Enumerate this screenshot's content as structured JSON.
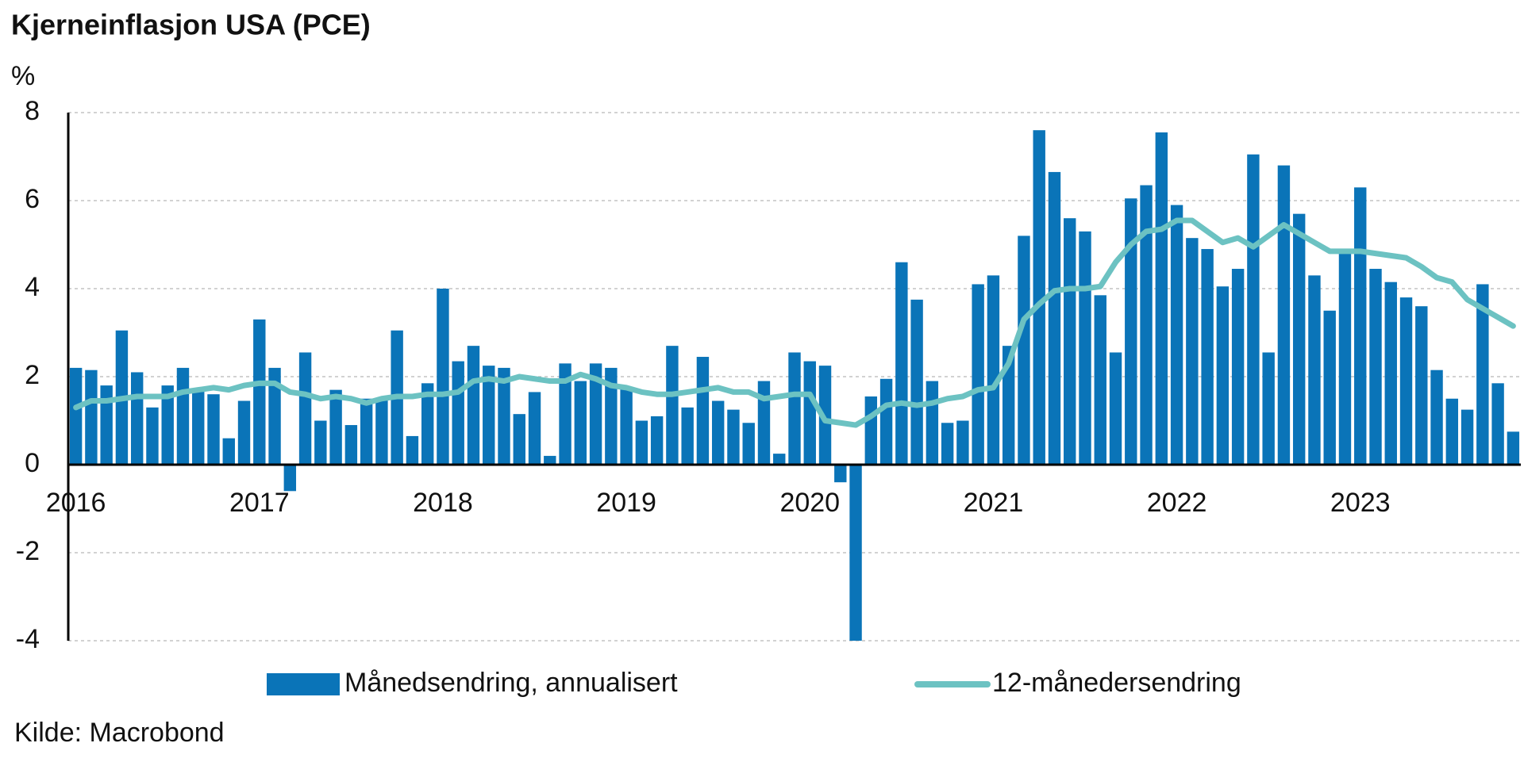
{
  "chart_data": {
    "type": "bar",
    "title": "Kjerneinflasjon USA (PCE)",
    "y_label": "%",
    "source": "Kilde: Macrobond",
    "categories": [
      "2016",
      null,
      null,
      null,
      null,
      null,
      null,
      null,
      null,
      null,
      null,
      null,
      "2017",
      null,
      null,
      null,
      null,
      null,
      null,
      null,
      null,
      null,
      null,
      null,
      "2018",
      null,
      null,
      null,
      null,
      null,
      null,
      null,
      null,
      null,
      null,
      null,
      "2019",
      null,
      null,
      null,
      null,
      null,
      null,
      null,
      null,
      null,
      null,
      null,
      "2020",
      null,
      null,
      null,
      null,
      null,
      null,
      null,
      null,
      null,
      null,
      null,
      "2021",
      null,
      null,
      null,
      null,
      null,
      null,
      null,
      null,
      null,
      null,
      null,
      "2022",
      null,
      null,
      null,
      null,
      null,
      null,
      null,
      null,
      null,
      null,
      null,
      "2023",
      null,
      null,
      null,
      null,
      null,
      null,
      null,
      null,
      null,
      null
    ],
    "series": [
      {
        "name": "Månedsendring, annualisert",
        "type": "bar",
        "color": "#0a74b8",
        "values": [
          2.2,
          2.15,
          1.8,
          3.05,
          2.1,
          1.3,
          1.8,
          2.2,
          1.7,
          1.6,
          0.6,
          1.45,
          3.3,
          2.2,
          -0.6,
          2.55,
          1.0,
          1.7,
          0.9,
          1.5,
          1.5,
          3.05,
          0.65,
          1.85,
          4.0,
          2.35,
          2.7,
          2.25,
          2.2,
          1.15,
          1.65,
          0.2,
          2.3,
          1.9,
          2.3,
          2.2,
          1.75,
          1.0,
          1.1,
          2.7,
          1.3,
          2.45,
          1.45,
          1.25,
          0.95,
          1.9,
          0.25,
          2.55,
          2.35,
          2.25,
          -0.4,
          -4.0,
          1.55,
          1.95,
          4.6,
          3.75,
          1.9,
          0.95,
          1.0,
          4.1,
          4.3,
          2.7,
          5.2,
          7.6,
          6.65,
          5.6,
          5.3,
          3.85,
          2.55,
          6.05,
          6.35,
          7.55,
          5.9,
          5.15,
          4.9,
          4.05,
          4.45,
          7.05,
          2.55,
          6.8,
          5.7,
          4.3,
          3.5,
          4.8,
          6.3,
          4.45,
          4.15,
          3.8,
          3.6,
          2.15,
          1.5,
          1.25,
          4.1,
          1.85,
          0.75
        ]
      },
      {
        "name": "12-månedersendring",
        "type": "line",
        "color": "#6cc2c2",
        "values": [
          1.3,
          1.45,
          1.45,
          1.5,
          1.55,
          1.55,
          1.55,
          1.65,
          1.7,
          1.75,
          1.7,
          1.8,
          1.85,
          1.85,
          1.65,
          1.6,
          1.5,
          1.55,
          1.5,
          1.4,
          1.5,
          1.55,
          1.55,
          1.6,
          1.6,
          1.65,
          1.9,
          1.95,
          1.9,
          2.0,
          1.95,
          1.9,
          1.9,
          2.05,
          1.95,
          1.8,
          1.75,
          1.65,
          1.6,
          1.6,
          1.65,
          1.7,
          1.75,
          1.65,
          1.65,
          1.5,
          1.55,
          1.6,
          1.6,
          1.0,
          0.95,
          0.9,
          1.1,
          1.35,
          1.4,
          1.35,
          1.4,
          1.5,
          1.55,
          1.7,
          1.75,
          2.3,
          3.3,
          3.65,
          3.95,
          4.0,
          4.0,
          4.05,
          4.6,
          5.0,
          5.3,
          5.35,
          5.55,
          5.55,
          5.3,
          5.05,
          5.15,
          4.95,
          5.2,
          5.45,
          5.25,
          5.05,
          4.85,
          4.85,
          4.85,
          4.8,
          4.75,
          4.7,
          4.5,
          4.25,
          4.15,
          3.75,
          3.55,
          3.35,
          3.15
        ]
      }
    ],
    "ylim": [
      -4,
      8
    ],
    "yticks": [
      8,
      6,
      4,
      2,
      0,
      -2,
      -4
    ],
    "grid": true
  }
}
